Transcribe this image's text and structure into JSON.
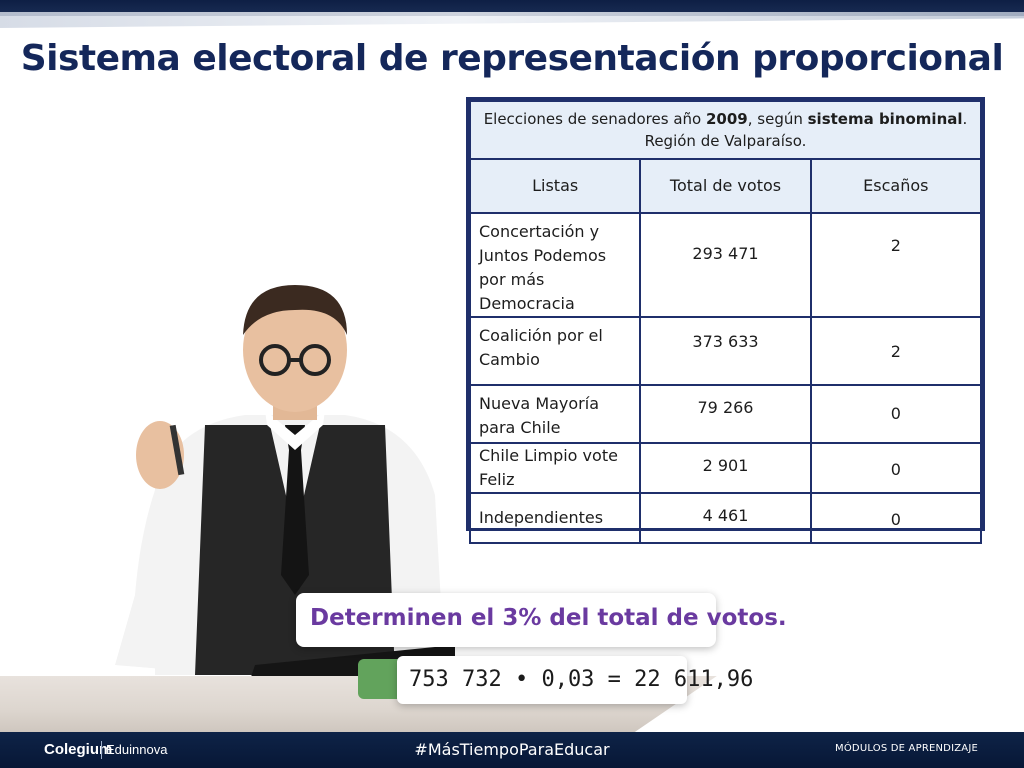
{
  "slide": {
    "title": "Sistema electoral de representación proporcional"
  },
  "table": {
    "caption_pre": "Elecciones de senadores año ",
    "caption_year": "2009",
    "caption_mid": ", según ",
    "caption_bold": "sistema binominal",
    "caption_post": ". Región de Valparaíso.",
    "headers": [
      "Listas",
      "Total de votos",
      "Escaños"
    ],
    "rows": [
      {
        "list": "Concertación y Juntos Podemos por más Democracia",
        "votes": "293 471",
        "seats": "2"
      },
      {
        "list": "Coalición por el Cambio",
        "votes": "373 633",
        "seats": "2"
      },
      {
        "list": "Nueva Mayoría para Chile",
        "votes": "79 266",
        "seats": "0"
      },
      {
        "list": "Chile Limpio vote Feliz",
        "votes": "2 901",
        "seats": "0"
      },
      {
        "list": "Independientes",
        "votes": "4 461",
        "seats": "0"
      }
    ]
  },
  "question": "Determinen el 3% del total de votos.",
  "calculation": "753 732 • 0,03 = 22 611,96",
  "footer": {
    "brand_primary": "Colegium",
    "brand_secondary": "Eduinnova",
    "hashtag": "#MásTiempoParaEducar",
    "modules": "MÓDULOS DE APRENDIZAJE"
  },
  "colors": {
    "title": "#14275a",
    "table_border": "#1f2f6b",
    "table_header_bg": "#e6eef8",
    "question_text": "#6a3aa0",
    "accent_green": "#62a35c",
    "footer_bg": "#0e2347"
  },
  "icons": {
    "presenter": "person-illustration"
  }
}
